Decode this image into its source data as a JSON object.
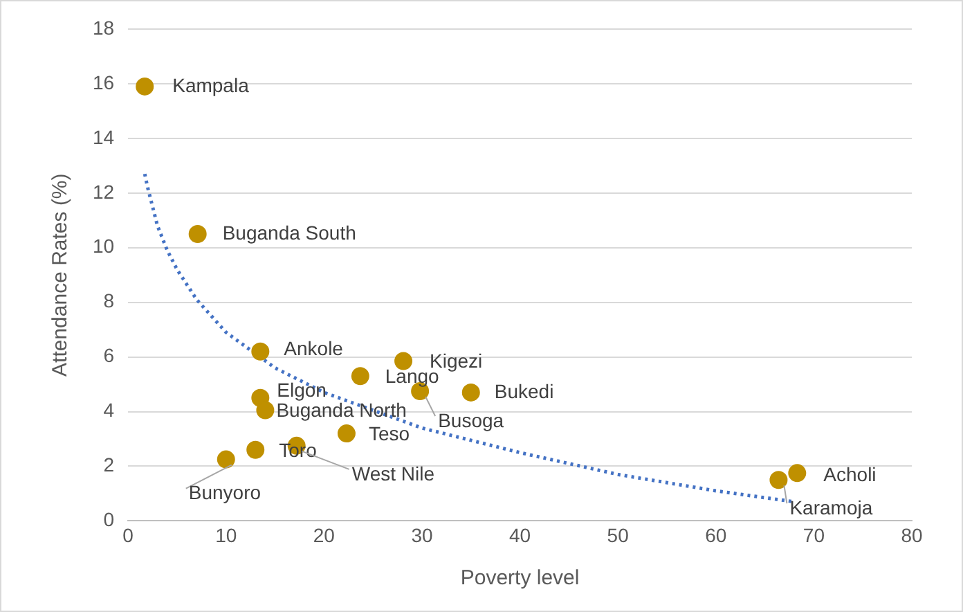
{
  "chart_data": {
    "type": "scatter",
    "xlabel": "Poverty level",
    "ylabel": "Attendance Rates (%)",
    "xlim": [
      0,
      80
    ],
    "xticks": [
      0,
      10,
      20,
      30,
      40,
      50,
      60,
      70,
      80
    ],
    "ylim": [
      0,
      18
    ],
    "yticks": [
      0,
      2,
      4,
      6,
      8,
      10,
      12,
      14,
      16,
      18
    ],
    "grid": "y",
    "legend": false,
    "series": [
      {
        "marker": "circle",
        "color": "#bf9000",
        "x": [
          1.7,
          7.1,
          13.5,
          13.5,
          14,
          28.1,
          23.7,
          29.8,
          35,
          22.3,
          13,
          17.2,
          10,
          68.3,
          66.4
        ],
        "values": [
          15.9,
          10.5,
          6.2,
          4.5,
          4.05,
          5.85,
          5.3,
          4.75,
          4.7,
          3.2,
          2.6,
          2.75,
          2.25,
          1.75,
          1.5
        ]
      },
      {
        "type": "line",
        "marker": "none",
        "color": "#4472c4",
        "line_style": "dotted",
        "x": [
          1.7,
          2,
          3,
          4,
          5,
          7,
          10,
          15,
          20,
          30,
          40,
          50,
          60,
          68
        ],
        "values": [
          12.7,
          12.2,
          10.8,
          9.9,
          9.2,
          8.1,
          6.9,
          5.6,
          4.7,
          3.4,
          2.5,
          1.7,
          1.1,
          0.7
        ]
      }
    ],
    "annotations": [
      {
        "text": "Kampala",
        "x": 1.7,
        "y": 15.9
      },
      {
        "text": "Buganda South",
        "x": 7.1,
        "y": 10.5
      },
      {
        "text": "Ankole",
        "x": 13.5,
        "y": 6.2
      },
      {
        "text": "Elgon",
        "x": 13.5,
        "y": 4.5
      },
      {
        "text": "Buganda North",
        "x": 14,
        "y": 4.05
      },
      {
        "text": "Kigezi",
        "x": 28.1,
        "y": 5.85
      },
      {
        "text": "Lango",
        "x": 23.7,
        "y": 5.3
      },
      {
        "text": "Busoga",
        "x": 29.8,
        "y": 4.75
      },
      {
        "text": "Bukedi",
        "x": 35,
        "y": 4.7
      },
      {
        "text": "Teso",
        "x": 22.3,
        "y": 3.2
      },
      {
        "text": "Toro",
        "x": 13,
        "y": 2.6
      },
      {
        "text": "West Nile",
        "x": 17.2,
        "y": 2.75
      },
      {
        "text": "Bunyoro",
        "x": 10,
        "y": 2.25
      },
      {
        "text": "Acholi",
        "x": 68.3,
        "y": 1.75
      },
      {
        "text": "Karamoja",
        "x": 66.4,
        "y": 1.5
      }
    ]
  }
}
